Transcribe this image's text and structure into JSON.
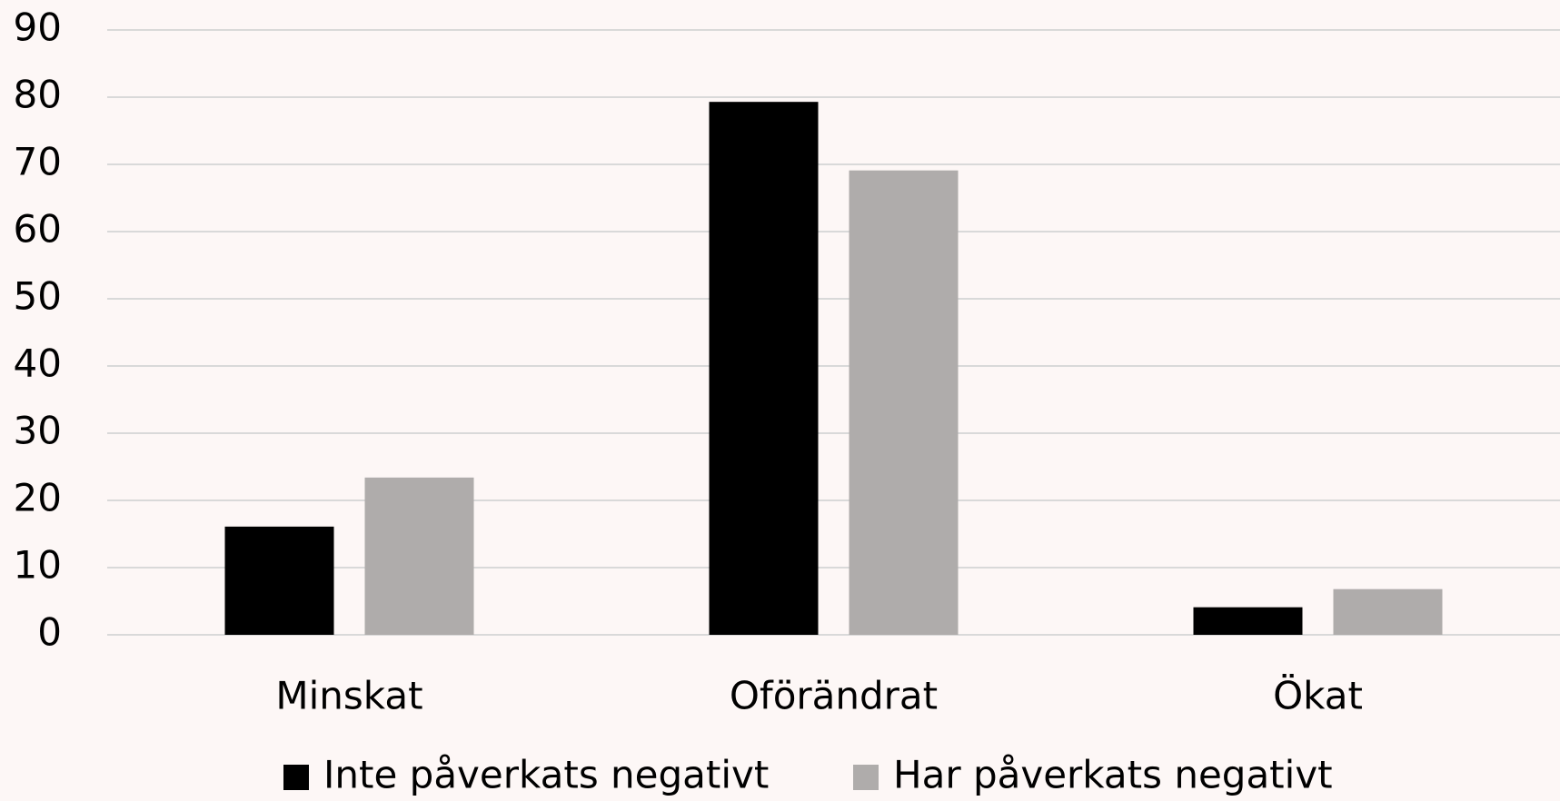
{
  "chart_data": {
    "type": "bar",
    "categories": [
      "Minskat",
      "Oförändrat",
      "Ökat"
    ],
    "series": [
      {
        "name": "Inte påverkats negativt",
        "color": "#000000",
        "values": [
          16.1,
          79.3,
          4.1
        ]
      },
      {
        "name": "Har påverkats negativt",
        "color": "#afacab",
        "values": [
          23.4,
          69.1,
          6.8
        ]
      }
    ],
    "ylim": [
      0,
      90
    ],
    "yticks": [
      0,
      10,
      20,
      30,
      40,
      50,
      60,
      70,
      80,
      90
    ],
    "grid": true,
    "legend": "bottom"
  }
}
